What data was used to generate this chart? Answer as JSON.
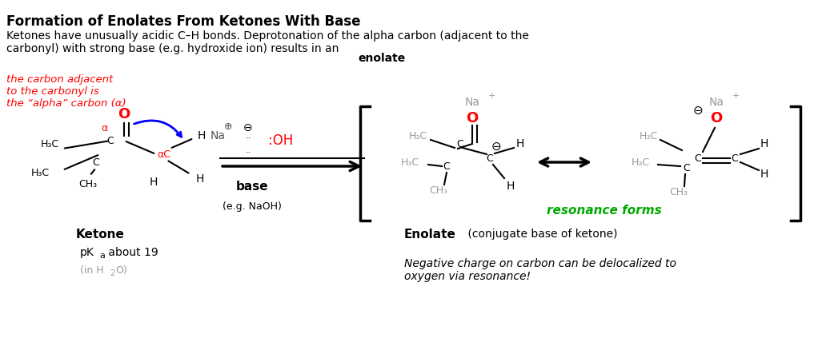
{
  "title": "Formation of Enolates From Ketones With Base",
  "subtitle_parts": [
    {
      "text": "Ketones have unusually acidic C–H bonds. Deprotonation of the alpha carbon (adjacent to the\ncarbonyl) with strong base (e.g. hydroxide ion) results in an ",
      "bold": false
    },
    {
      "text": "enolate",
      "bold": true
    }
  ],
  "italic_red_text": "the carbon adjacent\nto the carbonyl is\nthe “alpha” carbon (α)",
  "ketone_label": "Ketone",
  "pka_label": "pK",
  "pka_sub": "a",
  "pka_rest": " about 19",
  "pka_water": "(in H",
  "pka_water_sub": "2",
  "pka_water_end": "O)",
  "base_label": "base",
  "base_eg": "(e.g. NaOH)",
  "enolate_label_bold": "Enolate",
  "enolate_label_rest": " (conjugate base of ketone)",
  "resonance_label": "resonance forms",
  "bottom_italic": "Negative charge on carbon can be delocalized to\noxygen via resonance!",
  "bg_color": "#ffffff",
  "black": "#000000",
  "red": "#ff0000",
  "blue": "#0000ff",
  "gray": "#999999",
  "green": "#00aa00",
  "dark_gray": "#555555"
}
